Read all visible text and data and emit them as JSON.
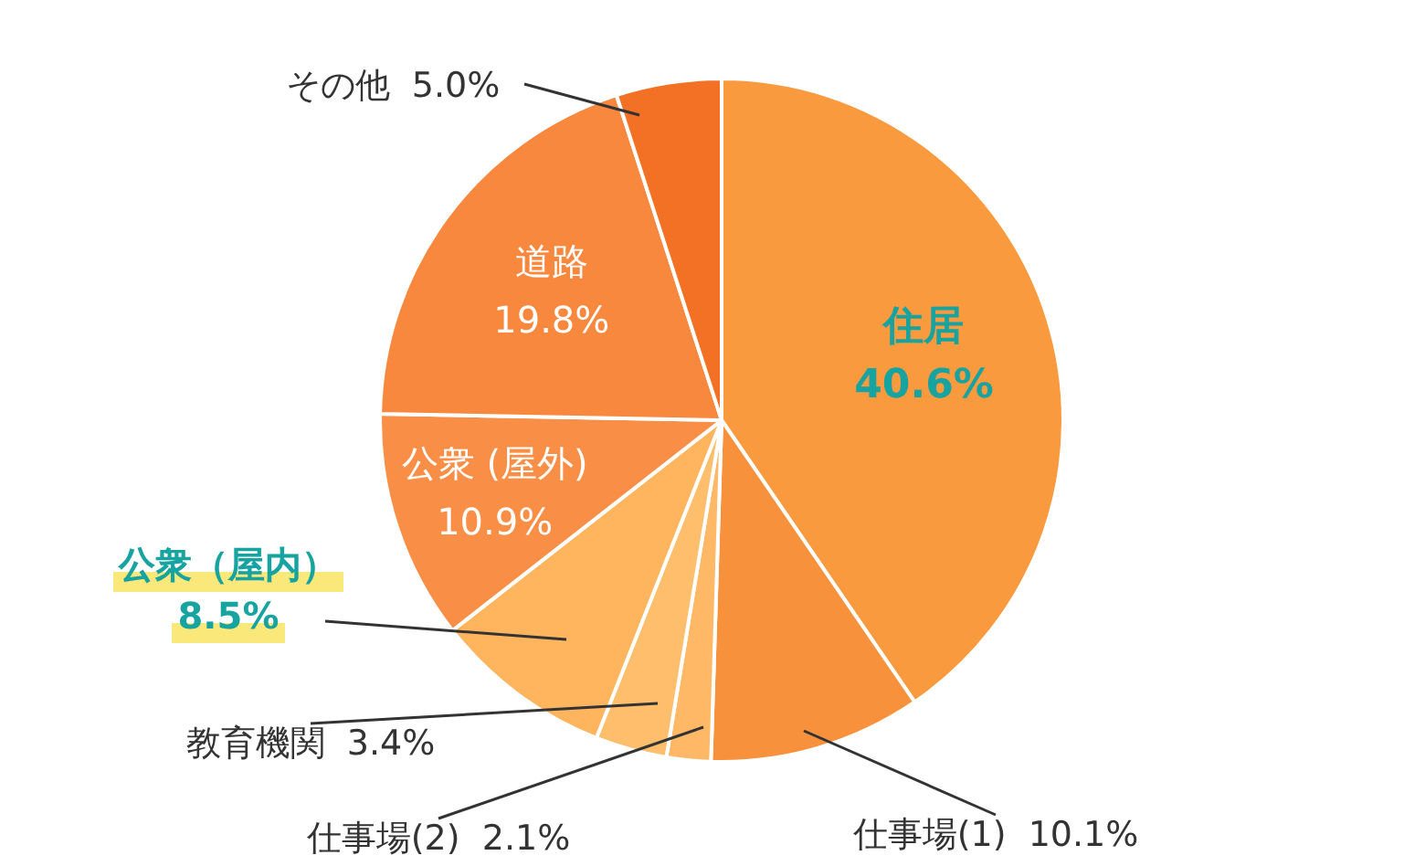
{
  "chart_data": {
    "type": "pie",
    "categories": [
      "住居",
      "仕事場(1)",
      "仕事場(2)",
      "教育機関",
      "公衆（屋内）",
      "公衆 (屋外)",
      "道路",
      "その他"
    ],
    "values": [
      40.6,
      10.1,
      2.1,
      3.4,
      8.5,
      10.9,
      19.8,
      5.0
    ],
    "value_labels": [
      "40.6%",
      "10.1%",
      "2.1%",
      "3.4%",
      "8.5%",
      "10.9%",
      "19.8%",
      "5.0%"
    ],
    "colors": [
      "#fa9a3e",
      "#f8913c",
      "#ffb866",
      "#ffbe6c",
      "#ffb45e",
      "#f98e46",
      "#f8883e",
      "#f27124"
    ],
    "legend": false
  }
}
